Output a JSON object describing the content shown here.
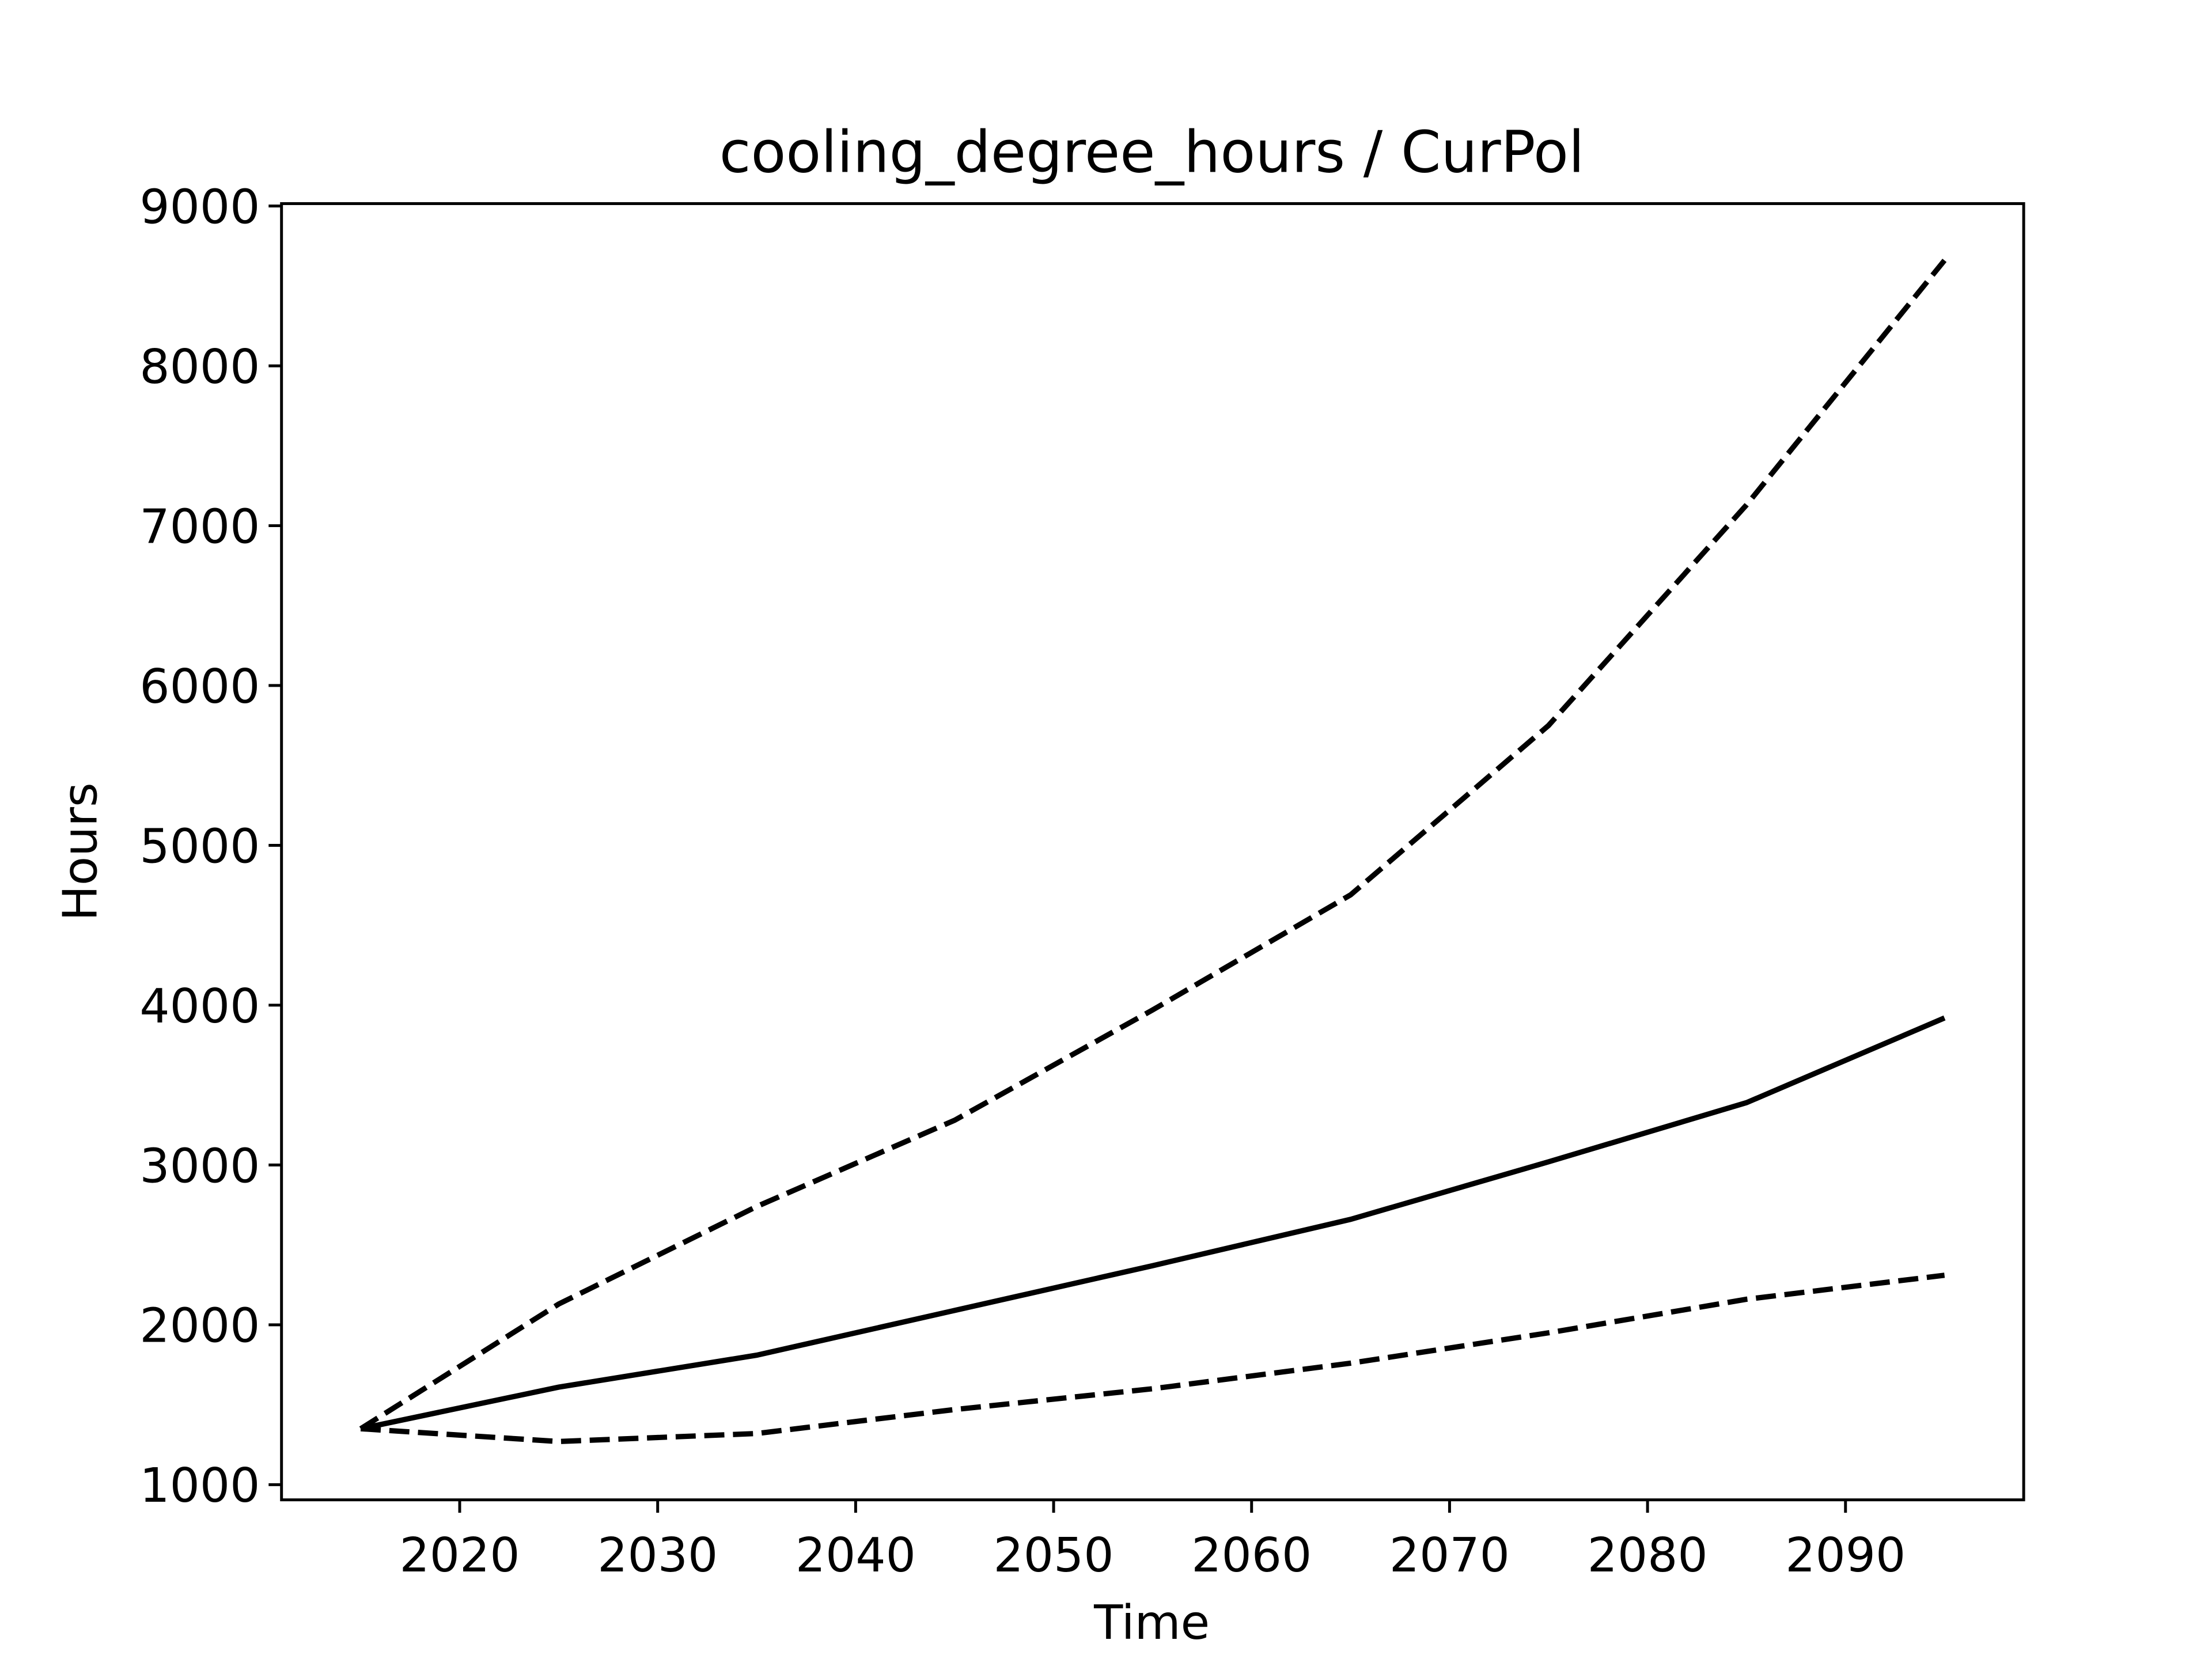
{
  "chart_data": {
    "type": "line",
    "title": "cooling_degree_hours / CurPol",
    "x_label": "Time",
    "y_label": "Hours",
    "x": [
      2015,
      2025,
      2035,
      2045,
      2055,
      2065,
      2075,
      2085,
      2095
    ],
    "series": [
      {
        "color": "#000000",
        "linestyle": "solid",
        "values": [
          1350,
          1610,
          1810,
          2090,
          2370,
          2660,
          3020,
          3390,
          3920
        ]
      },
      {
        "color": "#000000",
        "linestyle": "dashed",
        "values": [
          1350,
          2130,
          2740,
          3280,
          3970,
          4690,
          5750,
          7130,
          8660
        ]
      },
      {
        "color": "#000000",
        "linestyle": "dashed",
        "values": [
          1350,
          1270,
          1320,
          1470,
          1600,
          1760,
          1950,
          2160,
          2310
        ]
      }
    ],
    "xlim": [
      2011,
      2099
    ],
    "ylim": [
      905,
      9015
    ],
    "xticks": [
      2020,
      2030,
      2040,
      2050,
      2060,
      2070,
      2080,
      2090
    ],
    "yticks": [
      1000,
      2000,
      3000,
      4000,
      5000,
      6000,
      7000,
      8000,
      9000
    ],
    "grid": false
  }
}
